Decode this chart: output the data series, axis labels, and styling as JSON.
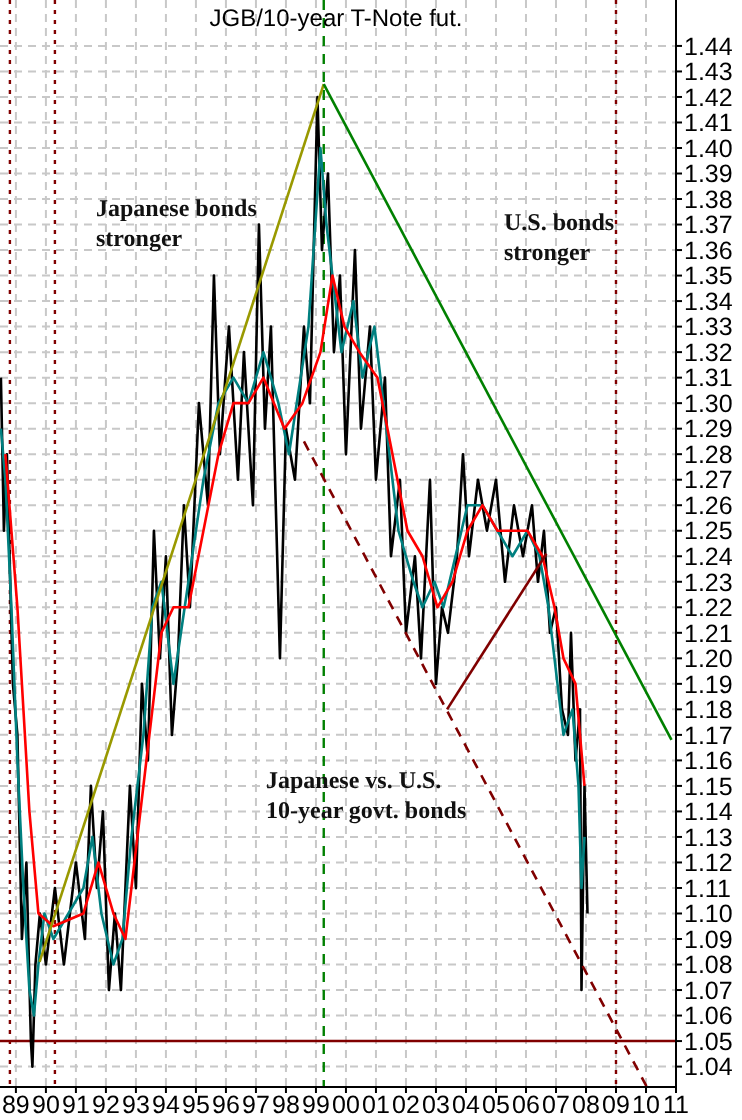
{
  "chart_data": {
    "type": "line",
    "title": "JGB/10-year T-Note fut.",
    "xlim": [
      1988.47,
      2011.0
    ],
    "xticks": [
      {
        "value": 1989,
        "label": "89"
      },
      {
        "value": 1990,
        "label": "90"
      },
      {
        "value": 1991,
        "label": "91"
      },
      {
        "value": 1992,
        "label": "92"
      },
      {
        "value": 1993,
        "label": "93"
      },
      {
        "value": 1994,
        "label": "94"
      },
      {
        "value": 1995,
        "label": "95"
      },
      {
        "value": 1996,
        "label": "96"
      },
      {
        "value": 1997,
        "label": "97"
      },
      {
        "value": 1998,
        "label": "98"
      },
      {
        "value": 1999,
        "label": "99"
      },
      {
        "value": 2000,
        "label": "00"
      },
      {
        "value": 2001,
        "label": "01"
      },
      {
        "value": 2002,
        "label": "02"
      },
      {
        "value": 2003,
        "label": "03"
      },
      {
        "value": 2004,
        "label": "04"
      },
      {
        "value": 2005,
        "label": "05"
      },
      {
        "value": 2006,
        "label": "06"
      },
      {
        "value": 2007,
        "label": "07"
      },
      {
        "value": 2008,
        "label": "08"
      },
      {
        "value": 2009,
        "label": "09"
      },
      {
        "value": 2010,
        "label": "10"
      },
      {
        "value": 2011,
        "label": "11"
      }
    ],
    "ylim": [
      1.032,
      1.458
    ],
    "yticks": [
      1.04,
      1.05,
      1.06,
      1.07,
      1.08,
      1.09,
      {
        "value": 1.1,
        "label": "1.10"
      },
      1.11,
      1.12,
      1.13,
      1.14,
      1.15,
      1.16,
      1.17,
      1.18,
      1.19,
      {
        "value": 1.2,
        "label": "1.20"
      },
      1.21,
      1.22,
      1.23,
      1.24,
      1.25,
      1.26,
      1.27,
      1.28,
      1.29,
      {
        "value": 1.3,
        "label": "1.30"
      },
      1.31,
      1.32,
      1.33,
      1.34,
      1.35,
      1.36,
      1.37,
      1.38,
      1.39,
      {
        "value": 1.4,
        "label": "1.40"
      },
      1.41,
      1.42,
      1.43,
      1.44
    ],
    "grid": true,
    "series": [
      {
        "color": "#000000",
        "x": [
          1988.5,
          1988.6,
          1988.7,
          1988.9,
          1989.05,
          1989.2,
          1989.35,
          1989.5,
          1989.55,
          1989.65,
          1989.8,
          1990.0,
          1990.3,
          1990.6,
          1991.0,
          1991.3,
          1991.5,
          1991.7,
          1991.9,
          1992.1,
          1992.3,
          1992.5,
          1992.8,
          1993.0,
          1993.2,
          1993.4,
          1993.6,
          1993.8,
          1994.0,
          1994.2,
          1994.4,
          1994.6,
          1994.8,
          1995.1,
          1995.4,
          1995.6,
          1995.8,
          1996.1,
          1996.4,
          1996.6,
          1996.9,
          1997.1,
          1997.3,
          1997.5,
          1997.8,
          1998.0,
          1998.3,
          1998.6,
          1998.8,
          1999.05,
          1999.2,
          1999.4,
          1999.6,
          1999.8,
          2000.0,
          2000.3,
          2000.5,
          2000.8,
          2001.0,
          2001.3,
          2001.5,
          2001.8,
          2002.0,
          2002.3,
          2002.5,
          2002.8,
          2003.0,
          2003.2,
          2003.4,
          2003.7,
          2003.9,
          2004.1,
          2004.4,
          2004.7,
          2005.0,
          2005.3,
          2005.6,
          2005.9,
          2006.2,
          2006.4,
          2006.6,
          2006.8,
          2007.0,
          2007.2,
          2007.4,
          2007.5,
          2007.65,
          2007.8,
          2007.85,
          2007.95,
          2008.05
        ],
        "values": [
          1.31,
          1.25,
          1.28,
          1.19,
          1.17,
          1.09,
          1.12,
          1.05,
          1.04,
          1.08,
          1.1,
          1.08,
          1.11,
          1.08,
          1.12,
          1.09,
          1.15,
          1.11,
          1.14,
          1.07,
          1.1,
          1.07,
          1.15,
          1.11,
          1.19,
          1.16,
          1.25,
          1.2,
          1.24,
          1.17,
          1.2,
          1.26,
          1.22,
          1.3,
          1.26,
          1.35,
          1.28,
          1.33,
          1.27,
          1.32,
          1.26,
          1.37,
          1.29,
          1.33,
          1.2,
          1.29,
          1.27,
          1.33,
          1.3,
          1.42,
          1.36,
          1.39,
          1.32,
          1.35,
          1.28,
          1.36,
          1.29,
          1.33,
          1.27,
          1.31,
          1.24,
          1.27,
          1.21,
          1.24,
          1.2,
          1.27,
          1.19,
          1.22,
          1.21,
          1.24,
          1.28,
          1.24,
          1.27,
          1.25,
          1.27,
          1.23,
          1.26,
          1.24,
          1.26,
          1.23,
          1.25,
          1.21,
          1.22,
          1.18,
          1.17,
          1.21,
          1.16,
          1.18,
          1.07,
          1.15,
          1.1
        ]
      },
      {
        "color": "#008080",
        "x": [
          1988.5,
          1988.65,
          1988.85,
          1989.05,
          1989.25,
          1989.45,
          1989.6,
          1989.75,
          1989.95,
          1990.25,
          1990.75,
          1991.25,
          1991.55,
          1991.85,
          1992.25,
          1992.55,
          1992.85,
          1993.25,
          1993.55,
          1993.85,
          1994.25,
          1994.75,
          1995.25,
          1995.75,
          1996.25,
          1996.75,
          1997.25,
          1997.75,
          1998.1,
          1998.75,
          1999.15,
          1999.35,
          1999.55,
          1999.85,
          2000.25,
          2000.55,
          2000.95,
          2001.25,
          2001.75,
          2002.25,
          2002.55,
          2002.95,
          2003.25,
          2003.65,
          2004.05,
          2004.55,
          2005.05,
          2005.55,
          2006.05,
          2006.45,
          2006.75,
          2007.05,
          2007.25,
          2007.55,
          2007.75,
          2007.85,
          2007.95
        ],
        "values": [
          1.29,
          1.27,
          1.22,
          1.16,
          1.11,
          1.07,
          1.06,
          1.08,
          1.1,
          1.09,
          1.1,
          1.11,
          1.13,
          1.1,
          1.08,
          1.09,
          1.13,
          1.17,
          1.22,
          1.23,
          1.19,
          1.23,
          1.27,
          1.3,
          1.31,
          1.3,
          1.32,
          1.3,
          1.28,
          1.33,
          1.4,
          1.37,
          1.35,
          1.32,
          1.34,
          1.31,
          1.33,
          1.3,
          1.25,
          1.23,
          1.22,
          1.23,
          1.22,
          1.24,
          1.26,
          1.26,
          1.25,
          1.24,
          1.25,
          1.24,
          1.22,
          1.19,
          1.17,
          1.18,
          1.15,
          1.11,
          1.13
        ]
      },
      {
        "color": "#ff0000",
        "x": [
          1988.65,
          1989.05,
          1989.45,
          1989.75,
          1990.25,
          1991.25,
          1991.75,
          1992.25,
          1992.65,
          1993.05,
          1993.45,
          1993.85,
          1994.25,
          1994.75,
          1995.25,
          1995.75,
          1996.25,
          1996.75,
          1997.25,
          1997.95,
          1998.55,
          1999.15,
          1999.55,
          1999.95,
          2000.45,
          2001.05,
          2001.55,
          2002.05,
          2002.55,
          2003.05,
          2003.55,
          2004.05,
          2004.55,
          2005.05,
          2005.55,
          2006.05,
          2006.55,
          2006.95,
          2007.25,
          2007.65,
          2007.95
        ],
        "values": [
          1.28,
          1.22,
          1.14,
          1.1,
          1.095,
          1.1,
          1.12,
          1.1,
          1.09,
          1.13,
          1.17,
          1.21,
          1.22,
          1.22,
          1.25,
          1.28,
          1.3,
          1.3,
          1.31,
          1.29,
          1.3,
          1.32,
          1.35,
          1.33,
          1.32,
          1.31,
          1.28,
          1.25,
          1.24,
          1.22,
          1.23,
          1.25,
          1.26,
          1.25,
          1.25,
          1.25,
          1.24,
          1.22,
          1.2,
          1.19,
          1.15
        ]
      },
      {
        "color": "#999900",
        "x": [
          1989.79,
          1999.26
        ],
        "values": [
          1.081,
          1.425
        ]
      },
      {
        "color": "#008000",
        "x": [
          1999.26,
          2010.85
        ],
        "values": [
          1.425,
          1.168
        ]
      },
      {
        "color": "#800000",
        "line_style": "dashed",
        "x": [
          1998.6,
          2010.03
        ],
        "values": [
          1.285,
          1.032
        ]
      },
      {
        "color": "#800000",
        "x": [
          2003.37,
          2006.68
        ],
        "values": [
          1.18,
          1.241
        ]
      }
    ],
    "ref_lines": [
      {
        "axis": "y",
        "value": 1.05,
        "color": "#800000",
        "line_style": "solid"
      },
      {
        "axis": "x",
        "value": 1988.8,
        "color": "#800000",
        "line_style": "dotted"
      },
      {
        "axis": "x",
        "value": 1990.3,
        "color": "#800000",
        "line_style": "dotted"
      },
      {
        "axis": "x",
        "value": 2009.0,
        "color": "#800000",
        "line_style": "dotted"
      },
      {
        "axis": "x",
        "value": 1999.26,
        "color": "#008000",
        "line_style": "dashed"
      }
    ],
    "annotations": [
      "Japanese bonds stronger",
      "U.S. bonds stronger",
      "Japanese vs. U.S. 10-year govt. bonds"
    ]
  }
}
